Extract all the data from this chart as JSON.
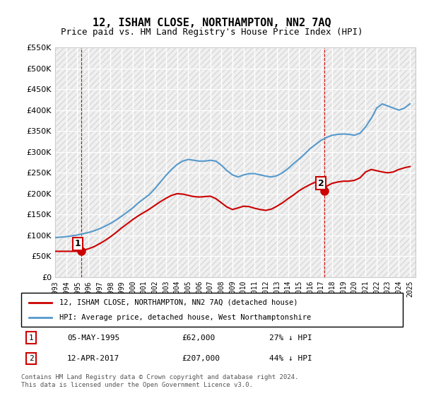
{
  "title": "12, ISHAM CLOSE, NORTHAMPTON, NN2 7AQ",
  "subtitle": "Price paid vs. HM Land Registry's House Price Index (HPI)",
  "legend_line1": "12, ISHAM CLOSE, NORTHAMPTON, NN2 7AQ (detached house)",
  "legend_line2": "HPI: Average price, detached house, West Northamptonshire",
  "annotation1_label": "1",
  "annotation1_date": "05-MAY-1995",
  "annotation1_price": "£62,000",
  "annotation1_hpi": "27% ↓ HPI",
  "annotation2_label": "2",
  "annotation2_date": "12-APR-2017",
  "annotation2_price": "£207,000",
  "annotation2_hpi": "44% ↓ HPI",
  "footer": "Contains HM Land Registry data © Crown copyright and database right 2024.\nThis data is licensed under the Open Government Licence v3.0.",
  "red_color": "#cc0000",
  "blue_color": "#5599cc",
  "background_color": "#f0f0f0",
  "grid_color": "#ffffff",
  "hatch_color": "#e0e0e0",
  "ylim": [
    0,
    550000
  ],
  "yticks": [
    0,
    50000,
    100000,
    150000,
    200000,
    250000,
    300000,
    350000,
    400000,
    450000,
    500000,
    550000
  ],
  "ytick_labels": [
    "£0",
    "£50K",
    "£100K",
    "£150K",
    "£200K",
    "£250K",
    "£300K",
    "£350K",
    "£400K",
    "£450K",
    "£500K",
    "£550K"
  ],
  "xlim_start": 1993.0,
  "xlim_end": 2025.5,
  "point1_x": 1995.35,
  "point1_y": 62000,
  "point2_x": 2017.28,
  "point2_y": 207000,
  "hpi_x": [
    1993,
    1993.5,
    1994,
    1994.5,
    1995,
    1995.5,
    1996,
    1996.5,
    1997,
    1997.5,
    1998,
    1998.5,
    1999,
    1999.5,
    2000,
    2000.5,
    2001,
    2001.5,
    2002,
    2002.5,
    2003,
    2003.5,
    2004,
    2004.5,
    2005,
    2005.5,
    2006,
    2006.5,
    2007,
    2007.5,
    2008,
    2008.5,
    2009,
    2009.5,
    2010,
    2010.5,
    2011,
    2011.5,
    2012,
    2012.5,
    2013,
    2013.5,
    2014,
    2014.5,
    2015,
    2015.5,
    2016,
    2016.5,
    2017,
    2017.5,
    2018,
    2018.5,
    2019,
    2019.5,
    2020,
    2020.5,
    2021,
    2021.5,
    2022,
    2022.5,
    2023,
    2023.5,
    2024,
    2024.5,
    2025
  ],
  "hpi_y": [
    95000,
    96000,
    97000,
    99000,
    101000,
    104000,
    107000,
    111000,
    116000,
    122000,
    129000,
    137000,
    146000,
    156000,
    166000,
    178000,
    188000,
    198000,
    212000,
    228000,
    244000,
    258000,
    270000,
    278000,
    282000,
    280000,
    278000,
    278000,
    280000,
    278000,
    268000,
    255000,
    245000,
    240000,
    245000,
    248000,
    248000,
    245000,
    242000,
    240000,
    243000,
    250000,
    260000,
    272000,
    283000,
    295000,
    308000,
    318000,
    328000,
    335000,
    340000,
    342000,
    343000,
    342000,
    340000,
    345000,
    360000,
    380000,
    405000,
    415000,
    410000,
    405000,
    400000,
    405000,
    415000
  ],
  "red_x": [
    1993,
    1993.5,
    1994,
    1994.5,
    1995,
    1995.35,
    1995.5,
    1996,
    1996.5,
    1997,
    1997.5,
    1998,
    1998.5,
    1999,
    1999.5,
    2000,
    2000.5,
    2001,
    2001.5,
    2002,
    2002.5,
    2003,
    2003.5,
    2004,
    2004.5,
    2005,
    2005.5,
    2006,
    2006.5,
    2007,
    2007.5,
    2008,
    2008.5,
    2009,
    2009.5,
    2010,
    2010.5,
    2011,
    2011.5,
    2012,
    2012.5,
    2013,
    2013.5,
    2014,
    2014.5,
    2015,
    2015.5,
    2016,
    2016.5,
    2017,
    2017.28,
    2017.5,
    2018,
    2018.5,
    2019,
    2019.5,
    2020,
    2020.5,
    2021,
    2021.5,
    2022,
    2022.5,
    2023,
    2023.5,
    2024,
    2024.5,
    2025
  ],
  "red_y": [
    62000,
    62000,
    62000,
    62000,
    62000,
    62000,
    64000,
    68000,
    73000,
    80000,
    88000,
    97000,
    107000,
    118000,
    128000,
    138000,
    147000,
    155000,
    163000,
    172000,
    181000,
    189000,
    196000,
    200000,
    199000,
    196000,
    193000,
    192000,
    193000,
    194000,
    188000,
    178000,
    168000,
    162000,
    166000,
    170000,
    169000,
    165000,
    162000,
    160000,
    163000,
    170000,
    178000,
    188000,
    197000,
    207000,
    215000,
    222000,
    228000,
    233000,
    207000,
    218000,
    225000,
    228000,
    230000,
    230000,
    232000,
    238000,
    252000,
    258000,
    255000,
    252000,
    250000,
    252000,
    258000,
    262000,
    265000
  ]
}
